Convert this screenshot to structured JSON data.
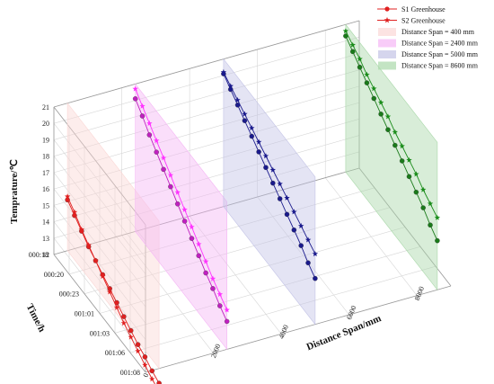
{
  "chart_data": {
    "type": "line",
    "title": "",
    "xlabel": "Distance Span/mm",
    "ylabel": "Time/h",
    "zlabel": "Temprature/℃",
    "x_ticks": [
      "0",
      "2000",
      "4000",
      "6000",
      "8000"
    ],
    "x_tick_values": [
      0,
      2000,
      4000,
      6000,
      8000
    ],
    "y_ticks": [
      "000:18",
      "000:20",
      "000:23",
      "001:01",
      "001:03",
      "001:06",
      "001:08"
    ],
    "z_ticks": [
      "12",
      "13",
      "14",
      "15",
      "16",
      "17",
      "18",
      "19",
      "20",
      "21"
    ],
    "z_tick_values": [
      12,
      13,
      14,
      15,
      16,
      17,
      18,
      19,
      20,
      21
    ],
    "xlim": [
      0,
      9000
    ],
    "zlim": [
      12,
      21
    ],
    "spans": [
      {
        "label": "Distance Span = 400 mm",
        "x": 400,
        "color": "#fbd7d5"
      },
      {
        "label": "Distance Span = 2400 mm",
        "x": 2400,
        "color": "#f5b6f5"
      },
      {
        "label": "Distance Span = 5000 mm",
        "x": 5000,
        "color": "#c3c3e6"
      },
      {
        "label": "Distance Span = 8600 mm",
        "x": 8600,
        "color": "#a9d8a9"
      }
    ],
    "series": [
      {
        "name": "S1 Greenhouse",
        "marker": "circle",
        "groups": [
          {
            "x": 400,
            "color": "#e02020",
            "values": [
              15.1,
              14.7,
              14.3,
              13.9,
              13.6,
              13.3,
              13.0,
              12.7,
              12.4,
              12.1,
              11.8,
              11.6,
              11.3,
              11.1
            ]
          },
          {
            "x": 2400,
            "color": "#c020c0",
            "values": [
              20.1,
              19.6,
              19.0,
              18.5,
              18.0,
              17.5,
              17.0,
              16.5,
              16.0,
              15.5,
              15.0,
              14.6,
              14.1,
              13.7
            ]
          },
          {
            "x": 5000,
            "color": "#1a1a8c",
            "values": [
              20.1,
              19.7,
              19.3,
              18.9,
              18.5,
              18.1,
              17.7,
              17.3,
              16.9,
              16.5,
              16.1,
              15.7,
              15.2,
              14.8
            ]
          },
          {
            "x": 8600,
            "color": "#1a7a1a",
            "values": [
              20.3,
              19.9,
              19.5,
              19.1,
              18.7,
              18.3,
              17.9,
              17.5,
              17.1,
              16.7,
              16.3,
              15.9,
              15.4,
              15.0
            ]
          }
        ]
      },
      {
        "name": "S2 Greenhouse",
        "marker": "star",
        "groups": [
          {
            "x": 400,
            "color": "#e02020",
            "values": [
              15.3,
              14.9,
              14.4,
              14.0,
              13.6,
              13.2,
              12.8,
              12.4,
              12.0,
              11.7,
              11.4,
              11.1,
              10.8,
              10.6
            ]
          },
          {
            "x": 2400,
            "color": "#ff33ff",
            "values": [
              20.7,
              20.2,
              19.7,
              19.2,
              18.7,
              18.2,
              17.7,
              17.2,
              16.7,
              16.2,
              15.7,
              15.2,
              14.8,
              14.4
            ]
          },
          {
            "x": 5000,
            "color": "#1a1a8c",
            "values": [
              20.2,
              19.9,
              19.6,
              19.3,
              19.0,
              18.7,
              18.4,
              18.1,
              17.8,
              17.5,
              17.2,
              16.9,
              16.6,
              16.3
            ]
          },
          {
            "x": 8600,
            "color": "#1a8c1a",
            "values": [
              20.6,
              20.3,
              20.0,
              19.6,
              19.3,
              19.0,
              18.7,
              18.3,
              18.0,
              17.7,
              17.4,
              17.0,
              16.7,
              16.4
            ]
          }
        ]
      }
    ],
    "grid": true,
    "legend_position": "top-right"
  }
}
